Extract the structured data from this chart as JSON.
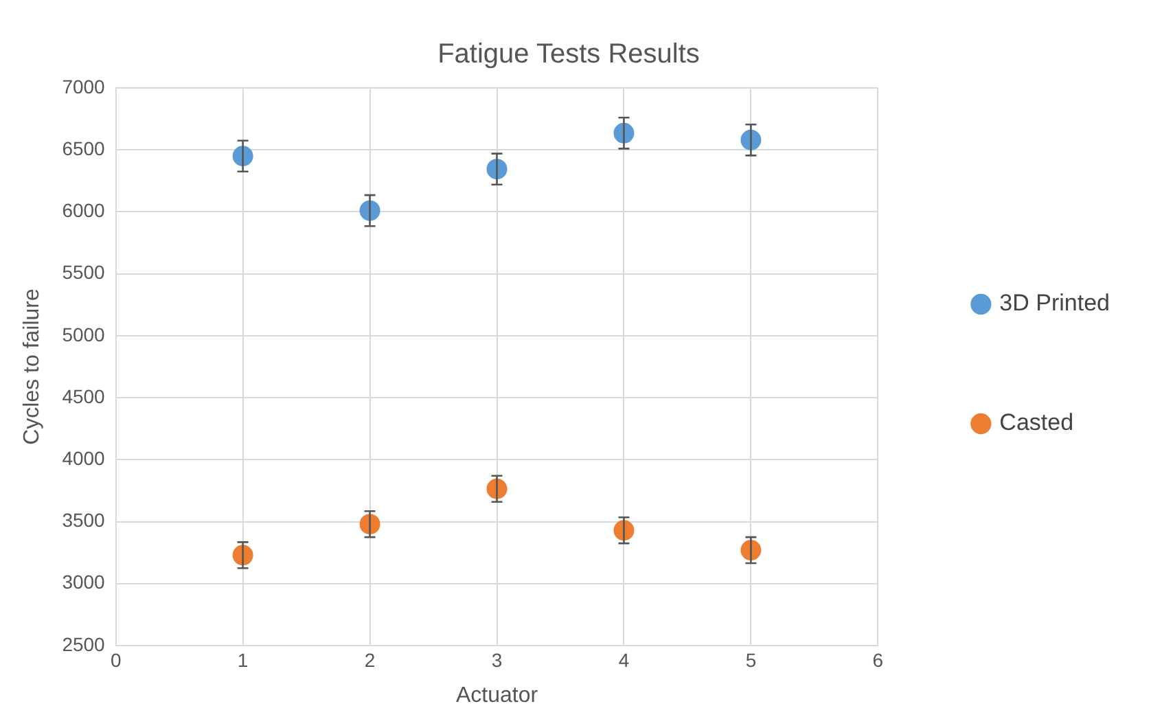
{
  "chart_data": {
    "type": "scatter",
    "title": "Fatigue Tests Results",
    "xlabel": "Actuator",
    "ylabel": "Cycles to failure",
    "xlim": [
      0,
      6
    ],
    "xticks": [
      0,
      1,
      2,
      3,
      4,
      5,
      6
    ],
    "ylim": [
      2500,
      7000
    ],
    "yticks": [
      2500,
      3000,
      3500,
      4000,
      4500,
      5000,
      5500,
      6000,
      6500,
      7000
    ],
    "grid": true,
    "legend": "right",
    "marker": "circle",
    "series": [
      {
        "name": "3D Printed",
        "color": "#5b9bd5",
        "x": [
          1,
          2,
          3,
          4,
          5
        ],
        "values": [
          6450,
          6010,
          6345,
          6635,
          6580
        ],
        "errors": [
          125,
          125,
          125,
          125,
          125
        ]
      },
      {
        "name": "Casted",
        "color": "#ed7d31",
        "x": [
          1,
          2,
          3,
          4,
          5
        ],
        "values": [
          3230,
          3480,
          3765,
          3430,
          3270
        ],
        "errors": [
          105,
          105,
          105,
          105,
          105
        ]
      }
    ]
  }
}
